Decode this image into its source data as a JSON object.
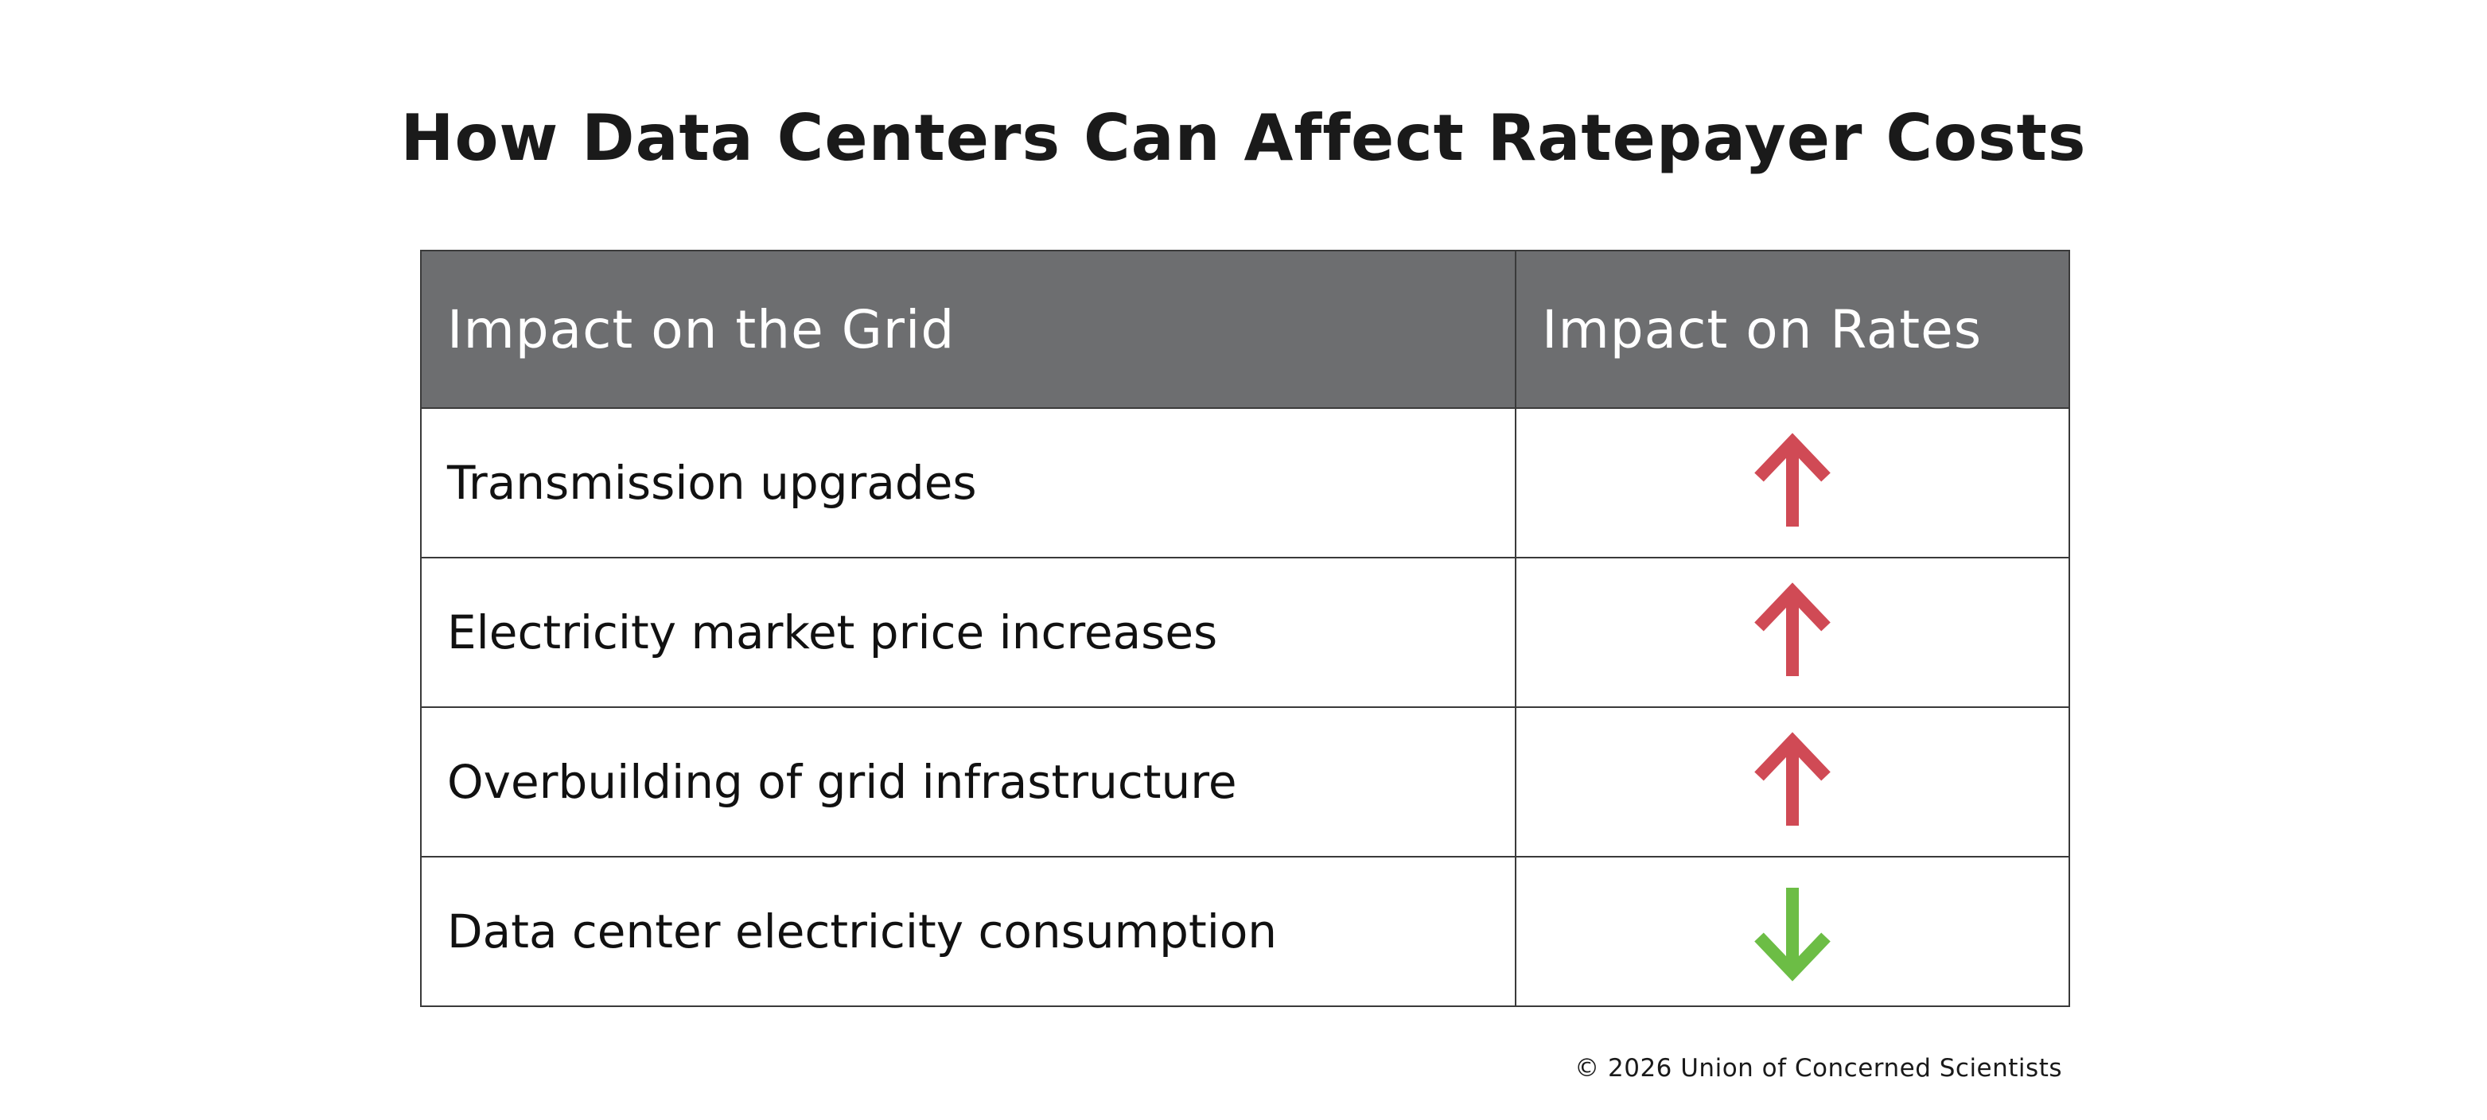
{
  "title": "How Data Centers Can Affect Ratepayer Costs",
  "table": {
    "headers": {
      "grid": "Impact on the Grid",
      "rates": "Impact on Rates"
    },
    "rows": [
      {
        "label": "Transmission upgrades",
        "direction": "up",
        "icon": "arrow-up-icon",
        "color": "#d04a55"
      },
      {
        "label": "Electricity market price increases",
        "direction": "up",
        "icon": "arrow-up-icon",
        "color": "#d04a55"
      },
      {
        "label": "Overbuilding of grid infrastructure",
        "direction": "up",
        "icon": "arrow-up-icon",
        "color": "#d04a55"
      },
      {
        "label": "Data center electricity consumption",
        "direction": "down",
        "icon": "arrow-down-icon",
        "color": "#6cbd45"
      }
    ]
  },
  "colors": {
    "header_bg": "#6d6e70",
    "header_text": "#ffffff",
    "up": "#d04a55",
    "down": "#6cbd45",
    "border": "#3a3a3a"
  },
  "footer": {
    "copyright": "© 2026 Union of Concerned Scientists"
  }
}
